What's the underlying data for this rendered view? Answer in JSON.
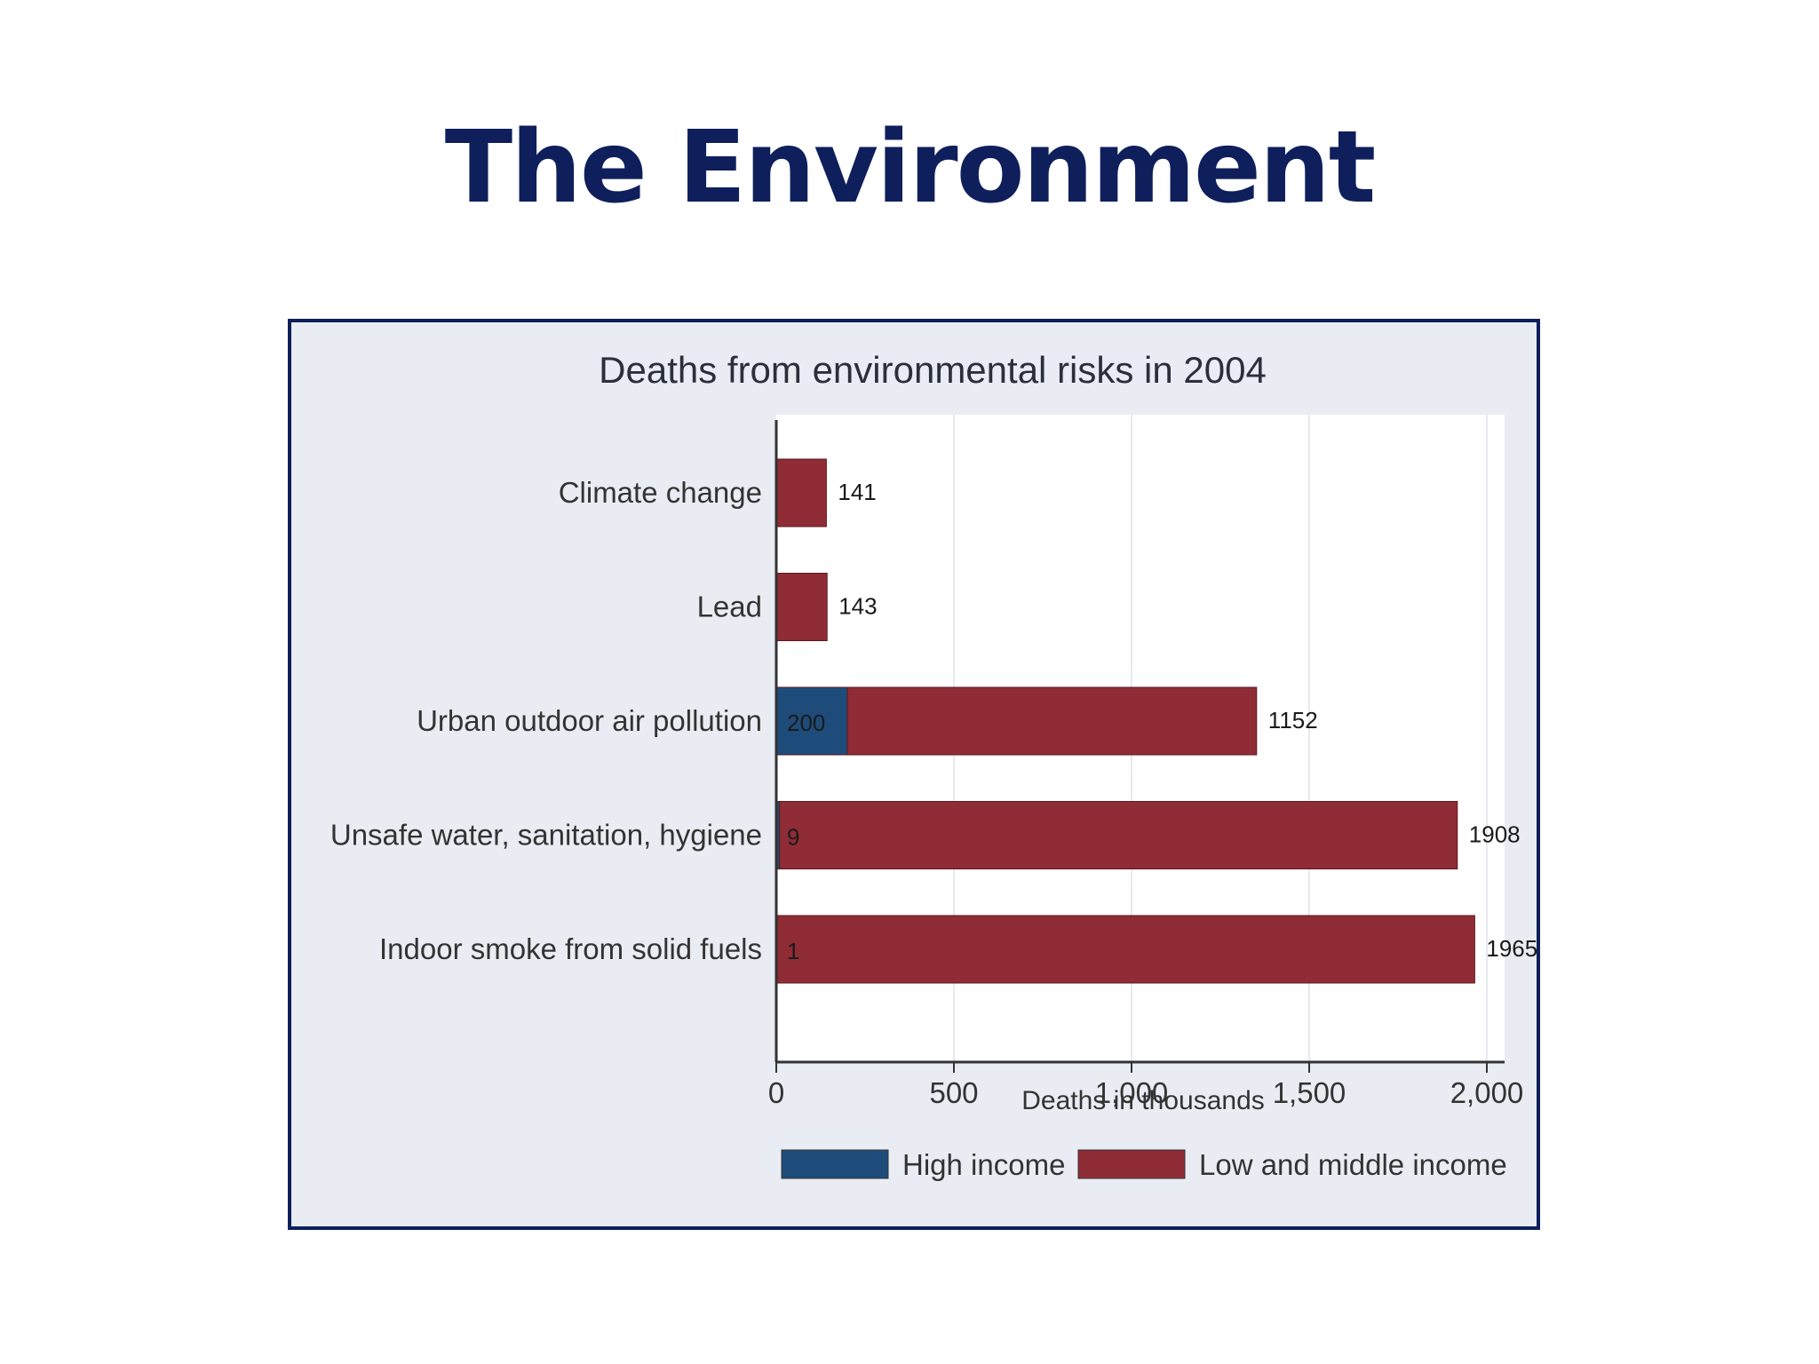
{
  "slide": {
    "title": "The Environment"
  },
  "colors": {
    "title": "#0f1f5c",
    "frame_border": "#0f1f5c",
    "chart_background": "#e9edf3",
    "plot_background": "#ffffff",
    "high_income": "#1e4c7a",
    "low_middle_income": "#8f2c35"
  },
  "chart_data": {
    "type": "bar",
    "orientation": "horizontal",
    "stacked": true,
    "title": "Deaths from environmental risks in 2004",
    "xlabel": "Deaths in thousands",
    "ylabel": "",
    "xlim": [
      0,
      2000
    ],
    "x_ticks": [
      0,
      500,
      1000,
      1500,
      2000
    ],
    "x_tick_labels": [
      "0",
      "500",
      "1,000",
      "1,500",
      "2,000"
    ],
    "grid": true,
    "legend_position": "bottom",
    "categories": [
      "Climate change",
      "Lead",
      "Urban outdoor air pollution",
      "Unsafe water, sanitation, hygiene",
      "Indoor smoke from solid fuels"
    ],
    "series": [
      {
        "name": "High income",
        "color": "#1e4c7a",
        "values": [
          0,
          0,
          200,
          9,
          1
        ],
        "labels": [
          "",
          "",
          "200",
          "9",
          "1"
        ]
      },
      {
        "name": "Low and middle income",
        "color": "#8f2c35",
        "values": [
          141,
          143,
          1152,
          1908,
          1965
        ],
        "labels": [
          "141",
          "143",
          "1152",
          "1908",
          "1965"
        ]
      }
    ]
  }
}
